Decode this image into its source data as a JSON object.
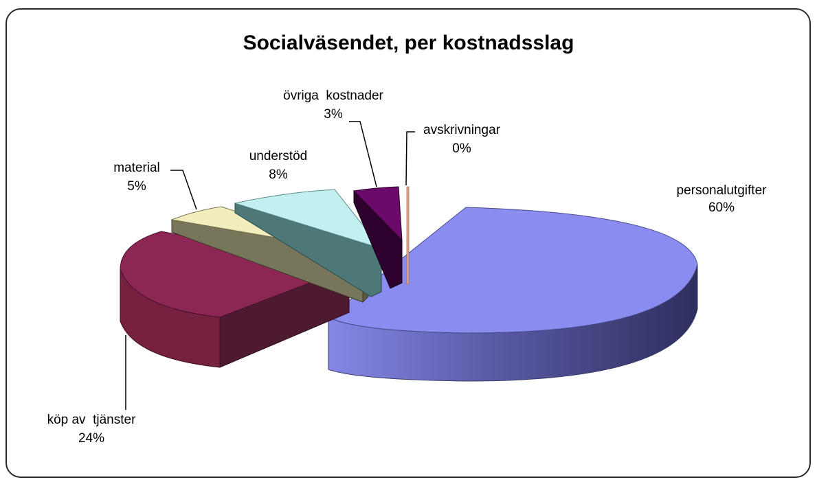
{
  "chart_data": {
    "type": "pie",
    "style": "3d-exploded",
    "title": "Socialväsendet, per kostnadsslag",
    "slices": [
      {
        "name": "personalutgifter",
        "value": 60,
        "label": "60%",
        "color": "#8A8CF0"
      },
      {
        "name": "köp av  tjänster",
        "value": 24,
        "label": "24%",
        "color": "#8B2752"
      },
      {
        "name": "material",
        "value": 5,
        "label": "5%",
        "color": "#F2EDBC"
      },
      {
        "name": "understöd",
        "value": 8,
        "label": "8%",
        "color": "#C2F0F0"
      },
      {
        "name": "övriga  kostnader",
        "value": 3,
        "label": "3%",
        "color": "#6B0A6B"
      },
      {
        "name": "avskrivningar",
        "value": 0,
        "label": "0%",
        "color": "#E8A890"
      }
    ]
  }
}
